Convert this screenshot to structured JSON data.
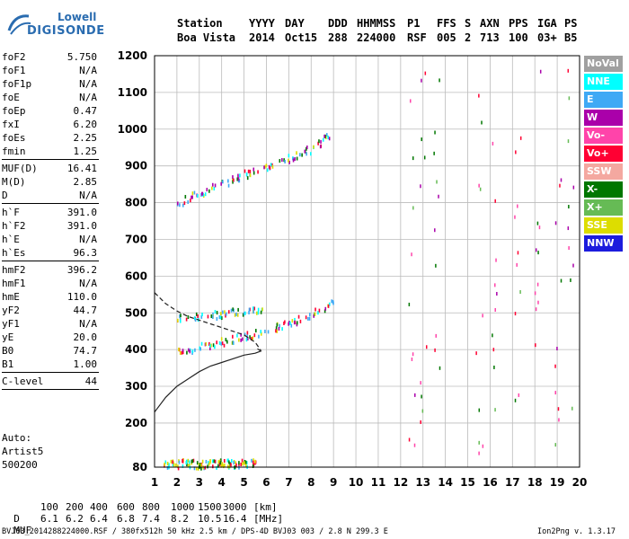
{
  "logo": {
    "line1": "Lowell",
    "line2": "DIGISONDE"
  },
  "header": {
    "row1": [
      "Station",
      "YYYY",
      "DAY",
      "DDD",
      "HHMMSS",
      "P1",
      "FFS",
      "S",
      "AXN",
      "PPS",
      "IGA",
      "PS"
    ],
    "row2": [
      "Boa Vista",
      "2014",
      "Oct15",
      "288",
      "224000",
      "RSF",
      "005",
      "2",
      "713",
      "100",
      "03+",
      "B5"
    ]
  },
  "params": [
    {
      "name": "foF2",
      "value": "5.750"
    },
    {
      "name": "foF1",
      "value": "N/A"
    },
    {
      "name": "foF1p",
      "value": "N/A"
    },
    {
      "name": "foE",
      "value": "N/A"
    },
    {
      "name": "foEp",
      "value": "0.47"
    },
    {
      "name": "fxI",
      "value": "6.20"
    },
    {
      "name": "foEs",
      "value": "2.25"
    },
    {
      "name": "fmin",
      "value": "1.25"
    },
    {
      "sep": true
    },
    {
      "name": "MUF(D)",
      "value": "16.41"
    },
    {
      "name": "M(D)",
      "value": "2.85"
    },
    {
      "name": "D",
      "value": "N/A"
    },
    {
      "sep": true
    },
    {
      "name": "h`F",
      "value": "391.0"
    },
    {
      "name": "h`F2",
      "value": "391.0"
    },
    {
      "name": "h`E",
      "value": "N/A"
    },
    {
      "name": "h`Es",
      "value": "96.3"
    },
    {
      "sep": true
    },
    {
      "name": "hmF2",
      "value": "396.2"
    },
    {
      "name": "hmF1",
      "value": "N/A"
    },
    {
      "name": "hmE",
      "value": "110.0"
    },
    {
      "name": "yF2",
      "value": "44.7"
    },
    {
      "name": "yF1",
      "value": "N/A"
    },
    {
      "name": "yE",
      "value": "20.0"
    },
    {
      "name": "B0",
      "value": "74.7"
    },
    {
      "name": "B1",
      "value": "1.00"
    },
    {
      "sep": true
    },
    {
      "name": "C-level",
      "value": "44"
    },
    {
      "sep": true
    }
  ],
  "autoscaling": {
    "line1": "Auto:",
    "line2": "Artist5",
    "line3": "500200"
  },
  "legend": [
    {
      "label": "NoVal",
      "color": "#a0a0a0"
    },
    {
      "label": "NNE",
      "color": "#00ffff"
    },
    {
      "label": "E",
      "color": "#3fa9f5"
    },
    {
      "label": "W",
      "color": "#aa00aa"
    },
    {
      "label": "Vo-",
      "color": "#ff44aa"
    },
    {
      "label": "Vo+",
      "color": "#ff0033"
    },
    {
      "label": "SSW",
      "color": "#f4a8a0"
    },
    {
      "label": "X-",
      "color": "#007700"
    },
    {
      "label": "X+",
      "color": "#66bb55"
    },
    {
      "label": "SSE",
      "color": "#dddd00"
    },
    {
      "label": "NNW",
      "color": "#1c1cdd"
    }
  ],
  "footer": {
    "d_label": "D",
    "d_values": [
      "100",
      "200",
      "400",
      "600",
      "800",
      "1000",
      "1500",
      "3000",
      "[km]"
    ],
    "muf_label": "MUF",
    "muf_values": [
      "6.1",
      "6.2",
      "6.4",
      "6.8",
      "7.4",
      "8.2",
      "10.5",
      "16.4",
      "[MHz]"
    ],
    "info": "BVJ03_2014288224000.RSF / 380fx512h 50 kHz 2.5 km / DPS-4D BVJ03 003 / 2.8 N 299.3 E",
    "version": "Ion2Png v. 1.3.17"
  },
  "chart_data": {
    "type": "scatter",
    "xlim": [
      1,
      20
    ],
    "ylim": [
      80,
      1200
    ],
    "xticks": [
      1,
      2,
      3,
      4,
      5,
      6,
      7,
      8,
      9,
      10,
      11,
      12,
      13,
      14,
      15,
      16,
      17,
      18,
      19,
      20
    ],
    "yticks": [
      80,
      200,
      300,
      400,
      500,
      600,
      700,
      800,
      900,
      1000,
      1100,
      1200
    ],
    "grid": true,
    "traces": [
      {
        "name": "F2 trace",
        "color": "#aa00aa",
        "x": [
          2.0,
          3.0,
          4.0,
          5.0,
          6.0,
          7.0,
          8.0,
          9.0
        ],
        "y": [
          395,
          410,
          425,
          440,
          455,
          475,
          500,
          530
        ]
      },
      {
        "name": "F2 trace 2nd",
        "color": "#aa00aa",
        "x": [
          2.0,
          3.0,
          4.0,
          5.0,
          6.0,
          7.0,
          8.0,
          8.8
        ],
        "y": [
          800,
          830,
          855,
          880,
          900,
          925,
          950,
          985
        ]
      },
      {
        "name": "E-oblique",
        "color": "#3fa9f5",
        "x": [
          2.0,
          3.0,
          4.0,
          5.0,
          5.8
        ],
        "y": [
          490,
          495,
          500,
          510,
          515
        ]
      },
      {
        "name": "Es trace",
        "color": "#dddd00",
        "x": [
          1.4,
          2.0,
          2.5,
          3.0,
          3.5,
          4.0,
          4.5,
          5.0,
          5.5
        ],
        "y": [
          90,
          92,
          95,
          90,
          92,
          95,
          91,
          93,
          95
        ]
      }
    ],
    "profile_solid": {
      "x": [
        1.0,
        1.5,
        2.0,
        2.5,
        3.0,
        3.5,
        4.0,
        4.5,
        5.0,
        5.5,
        5.75,
        5.6
      ],
      "y": [
        230,
        270,
        300,
        320,
        340,
        355,
        365,
        375,
        385,
        390,
        396,
        402
      ]
    },
    "profile_dashed": {
      "x": [
        1.0,
        1.5,
        2.0,
        2.5,
        3.0,
        3.5,
        4.0,
        4.5,
        5.0,
        5.5,
        5.75
      ],
      "y": [
        555,
        525,
        505,
        490,
        480,
        470,
        460,
        450,
        440,
        420,
        398
      ]
    }
  }
}
